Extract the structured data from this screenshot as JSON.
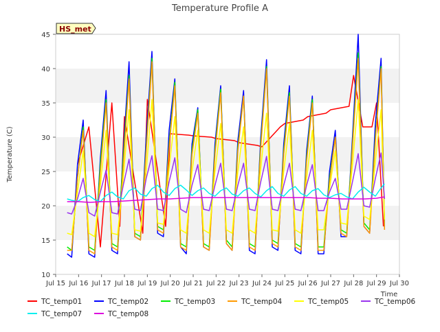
{
  "chart_data": {
    "type": "line",
    "title": "Temperature Profile A",
    "xlabel": "Time",
    "ylabel": "Temperature (C)",
    "xlim": [
      15,
      30
    ],
    "ylim": [
      10,
      45
    ],
    "x_ticks": [
      15,
      16,
      17,
      18,
      19,
      20,
      21,
      22,
      23,
      24,
      25,
      26,
      27,
      28,
      29,
      30
    ],
    "x_tick_labels": [
      "Jul 15",
      "Jul 16",
      "Jul 17",
      "Jul 18",
      "Jul 19",
      "Jul 20",
      "Jul 21",
      "Jul 22",
      "Jul 23",
      "Jul 24",
      "Jul 25",
      "Jul 26",
      "Jul 27",
      "Jul 28",
      "Jul 29",
      "Jul 30"
    ],
    "y_ticks": [
      10,
      15,
      20,
      25,
      30,
      35,
      40,
      45
    ],
    "y_tick_labels": [
      "10",
      "15",
      "20",
      "25",
      "30",
      "35",
      "40",
      "45"
    ],
    "grid": "horizontal bands",
    "annotation": "HS_met",
    "legend_position": "bottom",
    "series_colors": {
      "TC_temp01": "#ff0000",
      "TC_temp02": "#0000ff",
      "TC_temp03": "#00ee00",
      "TC_temp04": "#ff9900",
      "TC_temp05": "#ffff00",
      "TC_temp06": "#9933ee",
      "TC_temp07": "#00eeee",
      "TC_temp08": "#dd00dd"
    },
    "series": [
      {
        "name": "TC_temp01",
        "x": [
          15.95,
          16.45,
          16.95,
          17.45,
          17.8,
          18.0,
          18.8,
          19.0,
          19.8,
          20.0,
          20.8,
          21.0,
          21.8,
          22.0,
          22.8,
          23.0,
          23.8,
          24.0,
          24.8,
          25.0,
          25.8,
          26.0,
          26.8,
          27.0,
          27.8,
          28.0,
          28.4,
          28.8,
          29.0,
          29.3
        ],
        "y": [
          26,
          31.5,
          14,
          35,
          17,
          33,
          16,
          35.5,
          17,
          30.5,
          30.3,
          30.2,
          30.0,
          29.8,
          29.5,
          29.2,
          28.8,
          28.6,
          31.5,
          32,
          32.5,
          33,
          33.5,
          34,
          34.5,
          39,
          31.5,
          31.5,
          35,
          17
        ]
      },
      {
        "name": "TC_temp02",
        "x": [
          15.5,
          15.7,
          15.95,
          16.2,
          16.45,
          16.7,
          16.95,
          17.2,
          17.45,
          17.7,
          17.95,
          18.2,
          18.45,
          18.7,
          18.95,
          19.2,
          19.45,
          19.7,
          19.95,
          20.2,
          20.45,
          20.7,
          20.95,
          21.2,
          21.45,
          21.7,
          21.95,
          22.2,
          22.45,
          22.7,
          22.95,
          23.2,
          23.45,
          23.7,
          23.95,
          24.2,
          24.45,
          24.7,
          24.95,
          25.2,
          25.45,
          25.7,
          25.95,
          26.2,
          26.45,
          26.7,
          26.95,
          27.2,
          27.45,
          27.7,
          27.95,
          28.2,
          28.45,
          28.7,
          28.95,
          29.2,
          29.35
        ],
        "y": [
          13,
          12.5,
          26,
          32.5,
          13,
          12.5,
          27,
          36.8,
          13.5,
          13,
          28,
          41,
          15.5,
          15,
          30,
          42.5,
          16,
          15.5,
          31,
          38.5,
          14,
          13,
          29,
          34.3,
          14,
          13.5,
          29,
          37.5,
          14.5,
          13.5,
          29.5,
          36.8,
          13.5,
          13,
          30,
          41.3,
          14,
          13.5,
          29,
          37.5,
          13.5,
          13,
          28,
          36,
          13,
          13,
          25,
          31,
          15.5,
          15.5,
          30,
          45,
          17,
          16,
          32,
          41.5,
          16.5
        ]
      },
      {
        "name": "TC_temp03",
        "x": [
          15.5,
          15.7,
          15.95,
          16.2,
          16.45,
          16.7,
          16.95,
          17.2,
          17.45,
          17.7,
          17.95,
          18.2,
          18.45,
          18.7,
          18.95,
          19.2,
          19.45,
          19.7,
          19.95,
          20.2,
          20.45,
          20.7,
          20.95,
          21.2,
          21.45,
          21.7,
          21.95,
          22.2,
          22.45,
          22.7,
          22.95,
          23.2,
          23.45,
          23.7,
          23.95,
          24.2,
          24.45,
          24.7,
          24.95,
          25.2,
          25.45,
          25.7,
          25.95,
          26.2,
          26.45,
          26.7,
          26.95,
          27.2,
          27.45,
          27.7,
          27.95,
          28.2,
          28.45,
          28.7,
          28.95,
          29.2,
          29.35
        ],
        "y": [
          14,
          13.5,
          24,
          31.5,
          14,
          13.5,
          26,
          35.5,
          14.5,
          14,
          27,
          39,
          16,
          15.5,
          28.5,
          41.5,
          17,
          16.5,
          29,
          38,
          14.5,
          14,
          28,
          34,
          14.5,
          14,
          28,
          37,
          15,
          14,
          28.5,
          36,
          14.5,
          14,
          29,
          40.3,
          15,
          14.5,
          28,
          36.5,
          14.5,
          14,
          27,
          35.5,
          14,
          14,
          24,
          30,
          16.5,
          16,
          29,
          42.3,
          17.5,
          16.5,
          30,
          40.3,
          17
        ]
      },
      {
        "name": "TC_temp04",
        "x": [
          15.5,
          15.7,
          15.95,
          16.2,
          16.45,
          16.7,
          16.95,
          17.2,
          17.45,
          17.7,
          17.95,
          18.2,
          18.45,
          18.7,
          18.95,
          19.2,
          19.45,
          19.7,
          19.95,
          20.2,
          20.45,
          20.7,
          20.95,
          21.2,
          21.45,
          21.7,
          21.95,
          22.2,
          22.45,
          22.7,
          22.95,
          23.2,
          23.45,
          23.7,
          23.95,
          24.2,
          24.45,
          24.7,
          24.95,
          25.2,
          25.45,
          25.7,
          25.95,
          26.2,
          26.45,
          26.7,
          26.95,
          27.2,
          27.45,
          27.7,
          27.95,
          28.2,
          28.45,
          28.7,
          28.95,
          29.2,
          29.35
        ],
        "y": [
          13.5,
          13.5,
          24,
          31,
          13.5,
          13,
          25,
          35,
          14,
          13.5,
          26,
          38.5,
          15.5,
          15,
          28,
          41,
          16.5,
          16,
          28.5,
          37.5,
          14,
          13.5,
          27.5,
          33.5,
          14,
          13.5,
          27.5,
          36.5,
          14.5,
          13.5,
          28,
          36,
          14,
          13.5,
          28.5,
          40,
          14.5,
          14,
          27.5,
          36,
          14,
          13.5,
          26.5,
          35,
          13.5,
          13.5,
          23.5,
          30,
          16,
          15.5,
          28.5,
          41.5,
          17,
          16,
          29.5,
          40,
          16.5
        ]
      },
      {
        "name": "TC_temp05",
        "x": [
          15.5,
          15.7,
          15.95,
          16.2,
          16.45,
          16.7,
          16.95,
          17.2,
          17.45,
          17.7,
          17.95,
          18.2,
          18.45,
          18.7,
          18.95,
          19.2,
          19.45,
          19.7,
          19.95,
          20.2,
          20.45,
          20.7,
          20.95,
          21.2,
          21.45,
          21.7,
          21.95,
          22.2,
          22.45,
          22.7,
          22.95,
          23.2,
          23.45,
          23.7,
          23.95,
          24.2,
          24.45,
          24.7,
          24.95,
          25.2,
          25.45,
          25.7,
          25.95,
          26.2,
          26.45,
          26.7,
          26.95,
          27.2,
          27.45,
          27.7,
          27.95,
          28.2,
          28.45,
          28.7,
          28.95,
          29.2,
          29.35
        ],
        "y": [
          16,
          15.8,
          22,
          28,
          16,
          15.5,
          23,
          31,
          16,
          15.8,
          24,
          34,
          16.5,
          16.3,
          25,
          35.5,
          17.5,
          17.3,
          25.5,
          33,
          16.5,
          16,
          25,
          31,
          16.5,
          16,
          25,
          32,
          16.5,
          16,
          25,
          31.5,
          16.5,
          16,
          25.5,
          33.5,
          16.5,
          16.3,
          25,
          32,
          16.5,
          16,
          24,
          31,
          16.5,
          16.5,
          22.5,
          28,
          17.5,
          17.3,
          26,
          35.5,
          18.5,
          18,
          26.5,
          34,
          18
        ]
      },
      {
        "name": "TC_temp06",
        "x": [
          15.5,
          15.7,
          15.95,
          16.2,
          16.45,
          16.7,
          16.95,
          17.2,
          17.45,
          17.7,
          17.95,
          18.2,
          18.45,
          18.7,
          18.95,
          19.2,
          19.45,
          19.7,
          19.95,
          20.2,
          20.45,
          20.7,
          20.95,
          21.2,
          21.45,
          21.7,
          21.95,
          22.2,
          22.45,
          22.7,
          22.95,
          23.2,
          23.45,
          23.7,
          23.95,
          24.2,
          24.45,
          24.7,
          24.95,
          25.2,
          25.45,
          25.7,
          25.95,
          26.2,
          26.45,
          26.7,
          26.95,
          27.2,
          27.45,
          27.7,
          27.95,
          28.2,
          28.45,
          28.7,
          28.95,
          29.2,
          29.35
        ],
        "y": [
          19,
          18.8,
          21,
          24,
          19,
          18.5,
          22,
          25.2,
          19,
          18.8,
          23,
          26.8,
          19.5,
          19.3,
          24,
          27.3,
          19.5,
          19.3,
          23.5,
          27,
          19.5,
          19,
          23,
          26,
          19.5,
          19.3,
          23,
          26.2,
          19.5,
          19.3,
          23,
          26.2,
          19.5,
          19.3,
          23.5,
          27.2,
          19.5,
          19.3,
          23,
          26.2,
          19.5,
          19.3,
          23,
          26,
          19.3,
          19.3,
          22,
          24,
          19.5,
          19.5,
          23.5,
          27.6,
          20,
          19.8,
          24,
          27.7,
          21
        ]
      },
      {
        "name": "TC_temp07",
        "x": [
          15.5,
          15.7,
          15.95,
          16.2,
          16.45,
          16.7,
          16.95,
          17.2,
          17.45,
          17.7,
          17.95,
          18.2,
          18.45,
          18.7,
          18.95,
          19.2,
          19.45,
          19.7,
          19.95,
          20.2,
          20.45,
          20.7,
          20.95,
          21.2,
          21.45,
          21.7,
          21.95,
          22.2,
          22.45,
          22.7,
          22.95,
          23.2,
          23.45,
          23.7,
          23.95,
          24.2,
          24.45,
          24.7,
          24.95,
          25.2,
          25.45,
          25.7,
          25.95,
          26.2,
          26.45,
          26.7,
          26.95,
          27.2,
          27.45,
          27.7,
          27.95,
          28.2,
          28.45,
          28.7,
          28.95,
          29.2,
          29.35
        ],
        "y": [
          21,
          20.8,
          20.6,
          21.2,
          21.5,
          20.9,
          20.6,
          21.5,
          22,
          21.3,
          21,
          22.2,
          22.6,
          21.7,
          21.4,
          22.5,
          23,
          22,
          21.5,
          22.5,
          23,
          22.3,
          21.5,
          22.2,
          22.6,
          21.8,
          21.4,
          22.2,
          22.6,
          21.7,
          21.4,
          22.2,
          22.6,
          21.8,
          21.3,
          22.2,
          22.8,
          21.8,
          21.4,
          22.3,
          22.8,
          21.8,
          21.4,
          22.2,
          22.5,
          21.6,
          21.2,
          21.6,
          21.8,
          21.3,
          21,
          22,
          22.7,
          22,
          21.4,
          22.6,
          23.2
        ]
      },
      {
        "name": "TC_temp08",
        "x": [
          15.5,
          16.0,
          16.5,
          17.0,
          17.5,
          18.0,
          18.5,
          19.0,
          19.5,
          20.0,
          20.5,
          21.0,
          21.5,
          22.0,
          22.5,
          23.0,
          23.5,
          24.0,
          24.5,
          25.0,
          25.5,
          26.0,
          26.5,
          27.0,
          27.5,
          28.0,
          28.5,
          29.0,
          29.35
        ],
        "y": [
          20.6,
          20.6,
          20.5,
          20.6,
          20.6,
          20.7,
          20.8,
          20.9,
          21.0,
          21.0,
          21.1,
          21.2,
          21.2,
          21.2,
          21.2,
          21.2,
          21.2,
          21.2,
          21.2,
          21.2,
          21.2,
          21.2,
          21.1,
          21.1,
          21.0,
          21.0,
          21.0,
          21.1,
          21.3
        ]
      }
    ]
  },
  "legend": [
    {
      "label": "TC_temp01",
      "color": "#ff0000"
    },
    {
      "label": "TC_temp02",
      "color": "#0000ff"
    },
    {
      "label": "TC_temp03",
      "color": "#00ee00"
    },
    {
      "label": "TC_temp04",
      "color": "#ff9900"
    },
    {
      "label": "TC_temp05",
      "color": "#ffff00"
    },
    {
      "label": "TC_temp06",
      "color": "#9933ee"
    },
    {
      "label": "TC_temp07",
      "color": "#00eeee"
    },
    {
      "label": "TC_temp08",
      "color": "#dd00dd"
    }
  ]
}
